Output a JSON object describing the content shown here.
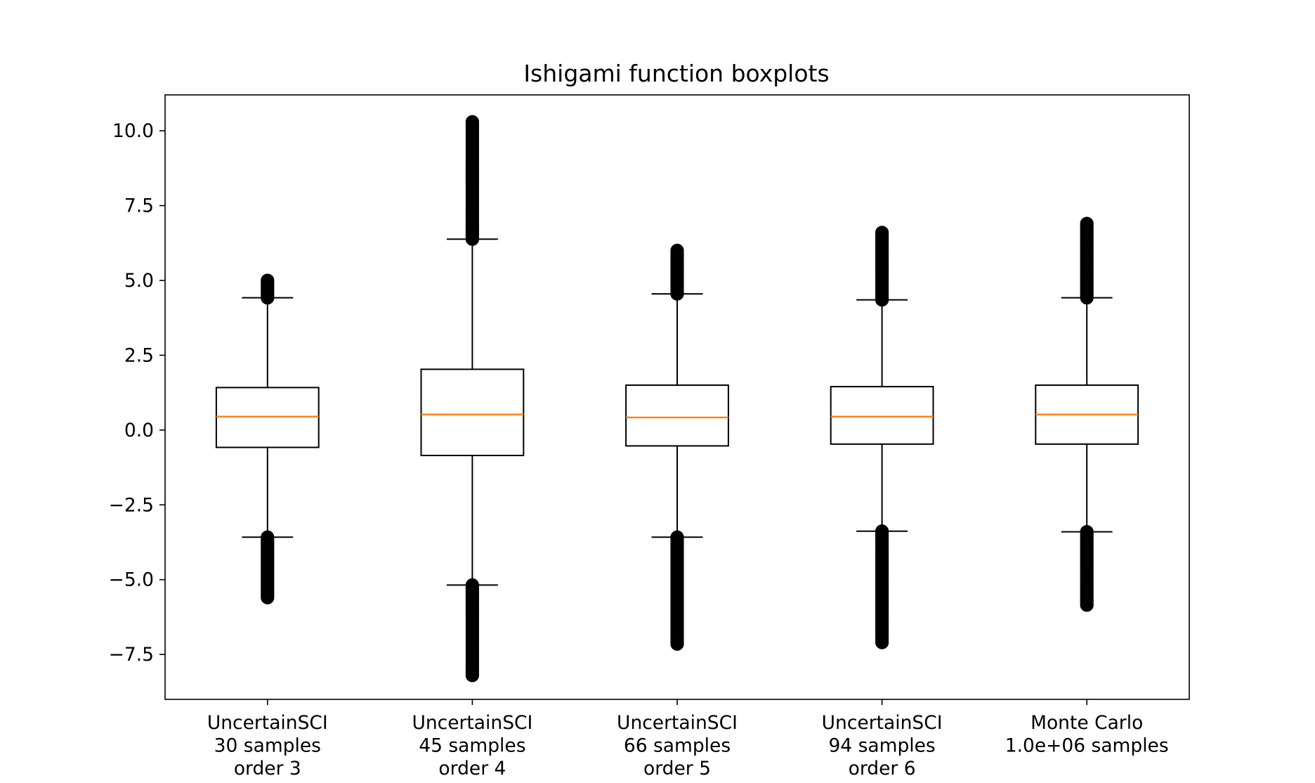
{
  "chart_data": {
    "type": "boxplot",
    "title": "Ishigami function boxplots",
    "xlabel": "",
    "ylabel": "",
    "ylim": [
      -9.0,
      11.2
    ],
    "yticks": [
      -7.5,
      -5.0,
      -2.5,
      0.0,
      2.5,
      5.0,
      7.5,
      10.0
    ],
    "ytick_labels": [
      "−7.5",
      "−5.0",
      "−2.5",
      "0.0",
      "2.5",
      "5.0",
      "7.5",
      "10.0"
    ],
    "grid": false,
    "colors": {
      "box": "#000000",
      "median": "#ff7f0e",
      "flier": "#000000"
    },
    "categories": [
      [
        "UncertainSCI",
        "30 samples",
        "order 3"
      ],
      [
        "UncertainSCI",
        "45 samples",
        "order 4"
      ],
      [
        "UncertainSCI",
        "66 samples",
        "order 5"
      ],
      [
        "UncertainSCI",
        "94 samples",
        "order 6"
      ],
      [
        "Monte Carlo",
        "1.0e+06 samples"
      ]
    ],
    "boxes": [
      {
        "q1": -0.58,
        "median": 0.45,
        "q3": 1.42,
        "whisker_low": -3.58,
        "whisker_high": 4.42,
        "flier_low_range": [
          -5.6,
          -3.58
        ],
        "flier_high_range": [
          4.42,
          5.0
        ]
      },
      {
        "q1": -0.85,
        "median": 0.52,
        "q3": 2.03,
        "whisker_low": -5.18,
        "whisker_high": 6.38,
        "flier_low_range": [
          -8.2,
          -5.18
        ],
        "flier_high_range": [
          6.38,
          10.3
        ]
      },
      {
        "q1": -0.53,
        "median": 0.42,
        "q3": 1.5,
        "whisker_low": -3.58,
        "whisker_high": 4.55,
        "flier_low_range": [
          -7.15,
          -3.58
        ],
        "flier_high_range": [
          4.55,
          6.0
        ]
      },
      {
        "q1": -0.47,
        "median": 0.45,
        "q3": 1.45,
        "whisker_low": -3.38,
        "whisker_high": 4.35,
        "flier_low_range": [
          -7.1,
          -3.38
        ],
        "flier_high_range": [
          4.35,
          6.6
        ]
      },
      {
        "q1": -0.47,
        "median": 0.52,
        "q3": 1.5,
        "whisker_low": -3.4,
        "whisker_high": 4.42,
        "flier_low_range": [
          -5.85,
          -3.4
        ],
        "flier_high_range": [
          4.42,
          6.9
        ]
      }
    ]
  }
}
